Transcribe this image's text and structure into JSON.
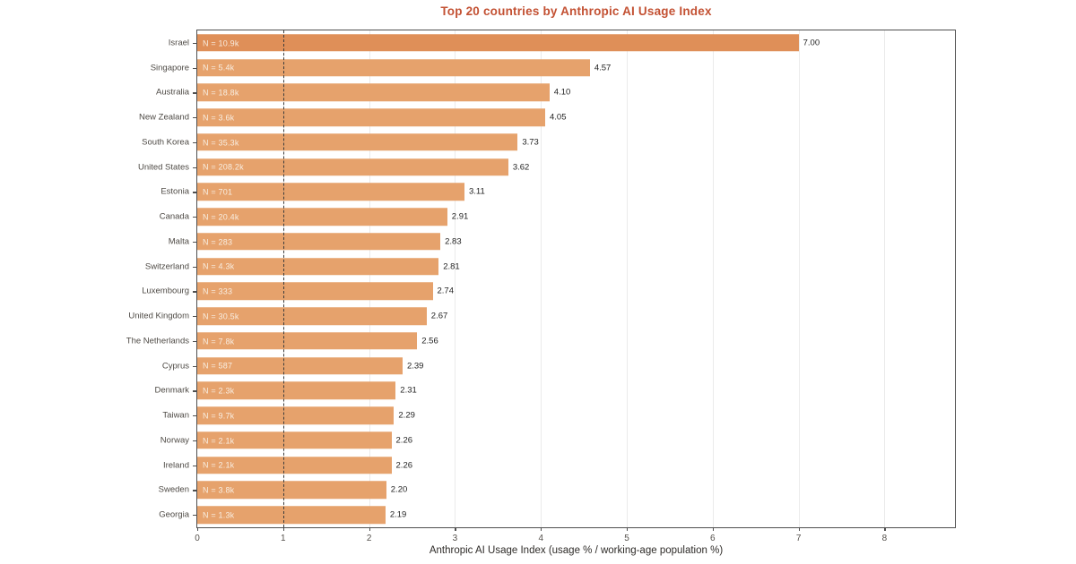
{
  "colors": {
    "title": "#c35133",
    "bar": "#e6a26c",
    "bar_highlight": "#df8f58",
    "n_label": "#f8eee2",
    "value_label": "#1f1f1f",
    "country_label": "#4e4a45",
    "grid": "#ebebeb",
    "frame": "#4f4f4f",
    "dashed_line": "#3c3c3c"
  },
  "chart_data": {
    "type": "bar",
    "orientation": "horizontal",
    "title": "Top 20 countries by Anthropic AI Usage Index",
    "xlabel": "Anthropic AI Usage Index (usage % / working-age population %)",
    "xlim": [
      0,
      8.82
    ],
    "x_ticks": [
      0,
      1,
      2,
      3,
      4,
      5,
      6,
      7,
      8
    ],
    "reference_line_x": 1,
    "grid": true,
    "legend": null,
    "rows": [
      {
        "country": "Israel",
        "n_label": "N = 10.9k",
        "value": 7.0,
        "value_label": "7.00",
        "highlight": true
      },
      {
        "country": "Singapore",
        "n_label": "N = 5.4k",
        "value": 4.57,
        "value_label": "4.57",
        "highlight": false
      },
      {
        "country": "Australia",
        "n_label": "N = 18.8k",
        "value": 4.1,
        "value_label": "4.10",
        "highlight": false
      },
      {
        "country": "New Zealand",
        "n_label": "N = 3.6k",
        "value": 4.05,
        "value_label": "4.05",
        "highlight": false
      },
      {
        "country": "South Korea",
        "n_label": "N = 35.3k",
        "value": 3.73,
        "value_label": "3.73",
        "highlight": false
      },
      {
        "country": "United States",
        "n_label": "N = 208.2k",
        "value": 3.62,
        "value_label": "3.62",
        "highlight": false
      },
      {
        "country": "Estonia",
        "n_label": "N = 701",
        "value": 3.11,
        "value_label": "3.11",
        "highlight": false
      },
      {
        "country": "Canada",
        "n_label": "N = 20.4k",
        "value": 2.91,
        "value_label": "2.91",
        "highlight": false
      },
      {
        "country": "Malta",
        "n_label": "N = 283",
        "value": 2.83,
        "value_label": "2.83",
        "highlight": false
      },
      {
        "country": "Switzerland",
        "n_label": "N = 4.3k",
        "value": 2.81,
        "value_label": "2.81",
        "highlight": false
      },
      {
        "country": "Luxembourg",
        "n_label": "N = 333",
        "value": 2.74,
        "value_label": "2.74",
        "highlight": false
      },
      {
        "country": "United Kingdom",
        "n_label": "N = 30.5k",
        "value": 2.67,
        "value_label": "2.67",
        "highlight": false
      },
      {
        "country": "The Netherlands",
        "n_label": "N = 7.8k",
        "value": 2.56,
        "value_label": "2.56",
        "highlight": false
      },
      {
        "country": "Cyprus",
        "n_label": "N = 587",
        "value": 2.39,
        "value_label": "2.39",
        "highlight": false
      },
      {
        "country": "Denmark",
        "n_label": "N = 2.3k",
        "value": 2.31,
        "value_label": "2.31",
        "highlight": false
      },
      {
        "country": "Taiwan",
        "n_label": "N = 9.7k",
        "value": 2.29,
        "value_label": "2.29",
        "highlight": false
      },
      {
        "country": "Norway",
        "n_label": "N = 2.1k",
        "value": 2.26,
        "value_label": "2.26",
        "highlight": false
      },
      {
        "country": "Ireland",
        "n_label": "N = 2.1k",
        "value": 2.26,
        "value_label": "2.26",
        "highlight": false
      },
      {
        "country": "Sweden",
        "n_label": "N = 3.8k",
        "value": 2.2,
        "value_label": "2.20",
        "highlight": false
      },
      {
        "country": "Georgia",
        "n_label": "N = 1.3k",
        "value": 2.19,
        "value_label": "2.19",
        "highlight": false
      }
    ]
  }
}
